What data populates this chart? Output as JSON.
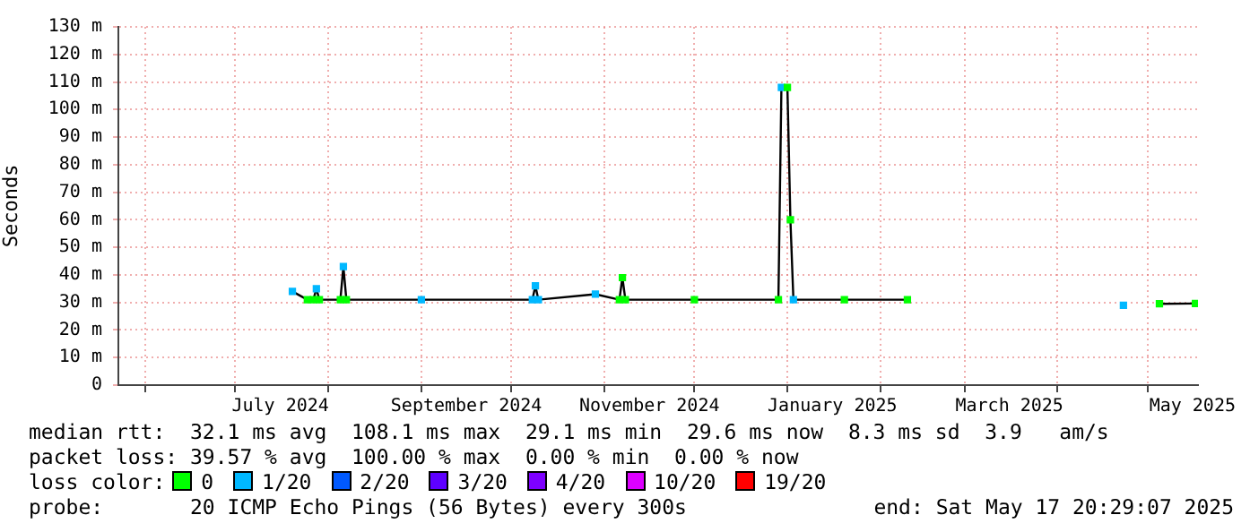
{
  "chart_data": {
    "type": "line",
    "ylabel": "Seconds",
    "x": [
      "2024-07-20",
      "2024-07-25",
      "2024-07-27",
      "2024-07-28",
      "2024-07-29",
      "2024-08-05",
      "2024-08-06",
      "2024-08-07",
      "2024-09-01",
      "2024-10-08",
      "2024-10-09",
      "2024-10-10",
      "2024-10-29",
      "2024-11-06",
      "2024-11-07",
      "2024-11-08",
      "2024-12-01",
      "2024-12-29",
      "2024-12-30",
      "2025-01-01",
      "2025-01-02",
      "2025-01-03",
      "2025-01-20",
      "2025-02-10",
      null,
      "2025-04-23",
      null,
      "2025-05-05",
      "2025-05-17"
    ],
    "series": [
      {
        "color": "#000000",
        "values": [
          34,
          31,
          31,
          35,
          31,
          31,
          43,
          31,
          31,
          31,
          36,
          31,
          33,
          31,
          39,
          31,
          31,
          31,
          108,
          108,
          60,
          31,
          31,
          31,
          null,
          null,
          null,
          29.5,
          29.6
        ]
      },
      {
        "type": "scatter",
        "name": "0",
        "color": "#00ff00",
        "values": [
          null,
          31,
          31,
          null,
          31,
          31,
          null,
          31,
          null,
          null,
          null,
          null,
          null,
          31,
          39,
          31,
          31,
          31,
          null,
          108,
          60,
          null,
          31,
          31,
          null,
          null,
          null,
          29.5,
          29.6
        ]
      },
      {
        "type": "scatter",
        "name": "1/20",
        "color": "#00b8ff",
        "values": [
          34,
          null,
          null,
          35,
          null,
          null,
          43,
          null,
          31,
          31,
          36,
          31,
          33,
          null,
          null,
          null,
          null,
          null,
          108,
          null,
          null,
          31,
          null,
          null,
          null,
          29,
          null,
          null,
          null
        ]
      },
      {
        "type": "scatter",
        "name": "2/20",
        "color": "#0059ff",
        "values": [
          null,
          null,
          null,
          null,
          null,
          null,
          null,
          null,
          null,
          null,
          null,
          null,
          null,
          null,
          null,
          null,
          null,
          null,
          null,
          null,
          null,
          null,
          null,
          null,
          null,
          null,
          null,
          null,
          null
        ]
      },
      {
        "type": "scatter",
        "name": "3/20",
        "color": "#5e00ff",
        "values": [
          null,
          null,
          null,
          null,
          null,
          null,
          null,
          null,
          null,
          null,
          null,
          null,
          null,
          null,
          null,
          null,
          null,
          null,
          null,
          null,
          null,
          null,
          null,
          null,
          null,
          null,
          null,
          null,
          null
        ]
      },
      {
        "type": "scatter",
        "name": "4/20",
        "color": "#7e00ff",
        "values": [
          null,
          null,
          null,
          null,
          null,
          null,
          null,
          null,
          null,
          null,
          null,
          null,
          null,
          null,
          null,
          null,
          null,
          null,
          null,
          null,
          null,
          null,
          null,
          null,
          null,
          null,
          null,
          null,
          null
        ]
      },
      {
        "type": "scatter",
        "name": "10/20",
        "color": "#dd00ff",
        "values": [
          null,
          null,
          null,
          null,
          null,
          null,
          null,
          null,
          null,
          null,
          null,
          null,
          null,
          null,
          null,
          null,
          null,
          null,
          null,
          null,
          null,
          null,
          null,
          null,
          null,
          null,
          null,
          null,
          null
        ]
      },
      {
        "type": "scatter",
        "name": "19/20",
        "color": "#ff0000",
        "values": [
          null,
          null,
          null,
          null,
          null,
          null,
          null,
          null,
          null,
          null,
          null,
          null,
          null,
          null,
          null,
          null,
          null,
          null,
          null,
          null,
          null,
          null,
          null,
          null,
          null,
          null,
          null,
          null,
          null
        ]
      }
    ],
    "legend": "bottom",
    "legend_title": "loss color:",
    "marker": "square",
    "grid": true,
    "xlim": [
      "2024-05-23",
      "2025-05-17T20:29"
    ],
    "xticks": [
      {
        "value": "2024-06-01",
        "label": null
      },
      {
        "value": "2024-07-01",
        "label": null
      },
      {
        "value": "2024-07-16",
        "label": "July 2024"
      },
      {
        "value": "2024-08-01",
        "label": null
      },
      {
        "value": "2024-09-01",
        "label": null
      },
      {
        "value": "2024-09-16",
        "label": "September 2024"
      },
      {
        "value": "2024-10-01",
        "label": null
      },
      {
        "value": "2024-11-01",
        "label": null
      },
      {
        "value": "2024-11-16",
        "label": "November 2024"
      },
      {
        "value": "2024-12-01",
        "label": null
      },
      {
        "value": "2025-01-01",
        "label": null
      },
      {
        "value": "2025-01-16",
        "label": "January 2025"
      },
      {
        "value": "2025-02-01",
        "label": null
      },
      {
        "value": "2025-03-01",
        "label": null
      },
      {
        "value": "2025-03-16",
        "label": "March 2025"
      },
      {
        "value": "2025-04-01",
        "label": null
      },
      {
        "value": "2025-05-01",
        "label": null
      },
      {
        "value": "2025-05-16",
        "label": "May 2025"
      }
    ],
    "ylim": [
      0,
      130
    ],
    "yticks": [
      0,
      {
        "value": 10,
        "label": "10 m"
      },
      {
        "value": 20,
        "label": "20 m"
      },
      {
        "value": 30,
        "label": "30 m"
      },
      {
        "value": 40,
        "label": "40 m"
      },
      {
        "value": 50,
        "label": "50 m"
      },
      {
        "value": 60,
        "label": "60 m"
      },
      {
        "value": 70,
        "label": "70 m"
      },
      {
        "value": 80,
        "label": "80 m"
      },
      {
        "value": 90,
        "label": "90 m"
      },
      {
        "value": 100,
        "label": "100 m"
      },
      {
        "value": 110,
        "label": "110 m"
      },
      {
        "value": 120,
        "label": "120 m"
      },
      {
        "value": 130,
        "label": "130 m"
      }
    ],
    "annotations": [
      "median rtt:  32.1 ms avg  108.1 ms max  29.1 ms min  29.6 ms now  8.3 ms sd  3.9   am/s",
      "packet loss: 39.57 % avg  100.00 % max  0.00 % min  0.00 % now",
      "probe:       20 ICMP Echo Pings (56 Bytes) every 300s",
      "end: Sat May 17 20:29:07 2025"
    ]
  }
}
